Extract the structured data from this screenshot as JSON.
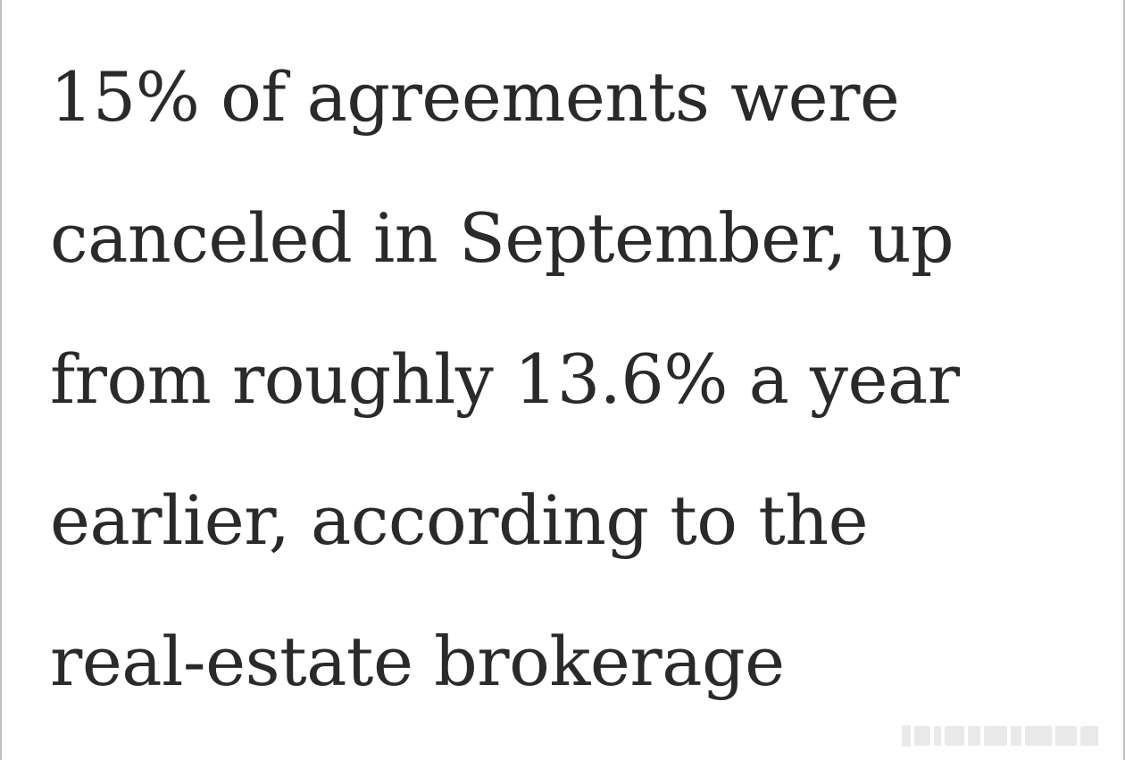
{
  "article": {
    "lines": [
      "15% of agreements were",
      "canceled in September, up",
      "from roughly 13.6% a year",
      "earlier, according to the",
      "real-estate brokerage"
    ]
  }
}
